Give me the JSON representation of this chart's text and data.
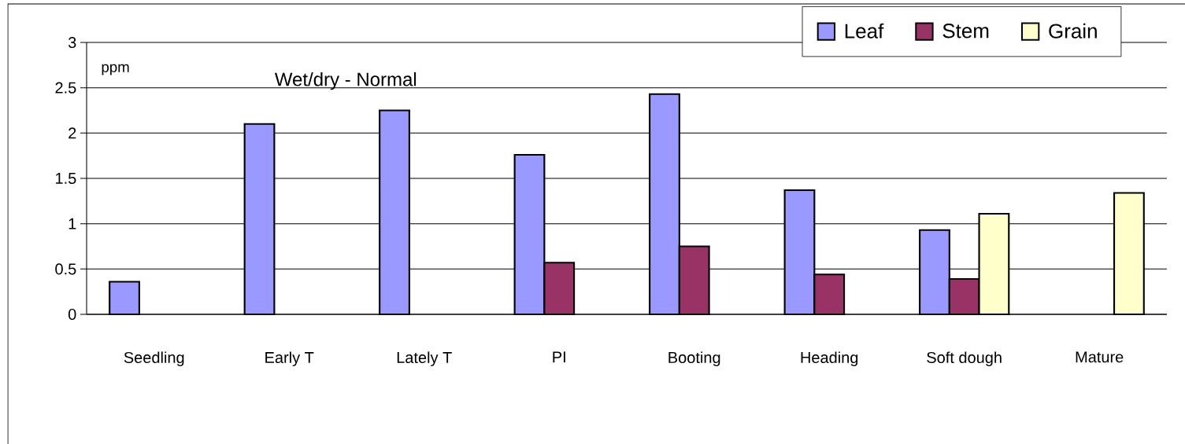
{
  "chart_data": {
    "type": "bar",
    "title": "Wet/dry - Normal",
    "ylabel": "ppm",
    "categories": [
      "Seedling",
      "Early T",
      "Lately T",
      "PI",
      "Booting",
      "Heading",
      "Soft dough",
      "Mature"
    ],
    "series": [
      {
        "name": "Leaf",
        "color": "#9999ff",
        "values": [
          0.36,
          2.1,
          2.25,
          1.76,
          2.43,
          1.37,
          0.93,
          null
        ]
      },
      {
        "name": "Stem",
        "color": "#993366",
        "values": [
          null,
          null,
          null,
          0.57,
          0.75,
          0.44,
          0.39,
          null
        ]
      },
      {
        "name": "Grain",
        "color": "#ffffcc",
        "values": [
          null,
          null,
          null,
          null,
          null,
          null,
          1.11,
          1.34
        ]
      }
    ],
    "ylim": [
      0,
      3
    ],
    "yticks": [
      0,
      0.5,
      1,
      1.5,
      2,
      2.5,
      3
    ],
    "grid": "y",
    "legend": "top right"
  }
}
